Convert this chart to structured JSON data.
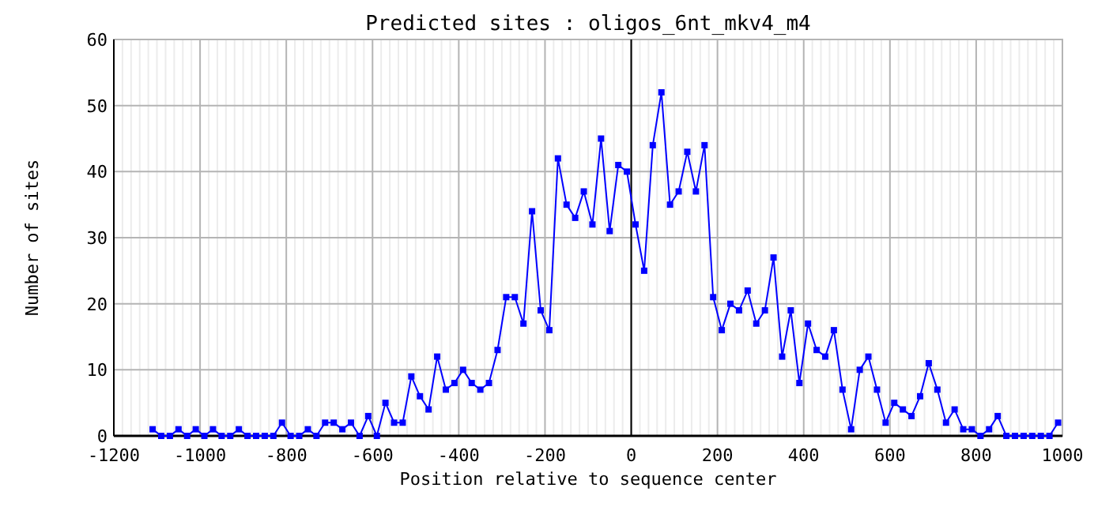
{
  "chart_data": {
    "type": "line",
    "title": "Predicted sites : oligos_6nt_mkv4_m4",
    "xlabel": "Position relative to sequence center",
    "ylabel": "Number of sites",
    "x": [
      -1110,
      -1090,
      -1070,
      -1050,
      -1030,
      -1010,
      -990,
      -970,
      -950,
      -930,
      -910,
      -890,
      -870,
      -850,
      -830,
      -810,
      -790,
      -770,
      -750,
      -730,
      -710,
      -690,
      -670,
      -650,
      -630,
      -610,
      -590,
      -570,
      -550,
      -530,
      -510,
      -490,
      -470,
      -450,
      -430,
      -410,
      -390,
      -370,
      -350,
      -330,
      -310,
      -290,
      -270,
      -250,
      -230,
      -210,
      -190,
      -170,
      -150,
      -130,
      -110,
      -90,
      -70,
      -50,
      -30,
      -10,
      10,
      30,
      50,
      70,
      90,
      110,
      130,
      150,
      170,
      190,
      210,
      230,
      250,
      270,
      290,
      310,
      330,
      350,
      370,
      390,
      410,
      430,
      450,
      470,
      490,
      510,
      530,
      550,
      570,
      590,
      610,
      630,
      650,
      670,
      690,
      710,
      730,
      750,
      770,
      790,
      810,
      830,
      850,
      870,
      890,
      910,
      930,
      950,
      970,
      990
    ],
    "series": [
      {
        "color": "#0000ff",
        "values": [
          1,
          0,
          0,
          1,
          0,
          1,
          0,
          1,
          0,
          0,
          1,
          0,
          0,
          0,
          0,
          2,
          0,
          0,
          1,
          0,
          2,
          2,
          1,
          2,
          0,
          3,
          0,
          5,
          2,
          2,
          9,
          6,
          4,
          12,
          7,
          8,
          10,
          8,
          7,
          8,
          13,
          21,
          21,
          17,
          34,
          19,
          16,
          42,
          35,
          33,
          37,
          32,
          45,
          31,
          41,
          40,
          32,
          25,
          44,
          52,
          35,
          37,
          43,
          37,
          44,
          21,
          16,
          20,
          19,
          22,
          17,
          19,
          27,
          12,
          19,
          8,
          17,
          13,
          12,
          16,
          7,
          1,
          10,
          12,
          7,
          2,
          5,
          4,
          3,
          6,
          11,
          7,
          2,
          4,
          1,
          1,
          0,
          1,
          3,
          0,
          0,
          0,
          0,
          0,
          0,
          2
        ]
      }
    ],
    "xlim": [
      -1200,
      1000
    ],
    "xticks": [
      -1200,
      -1000,
      -800,
      -600,
      -400,
      -200,
      0,
      200,
      400,
      600,
      800,
      1000
    ],
    "ylim": [
      0,
      60
    ],
    "yticks": [
      0,
      10,
      20,
      30,
      40,
      50,
      60
    ],
    "ref_lines": [
      {
        "axis": "x",
        "value": 0,
        "color": "#000000"
      }
    ],
    "grid": true,
    "marker": "square",
    "line_style": "solid"
  }
}
